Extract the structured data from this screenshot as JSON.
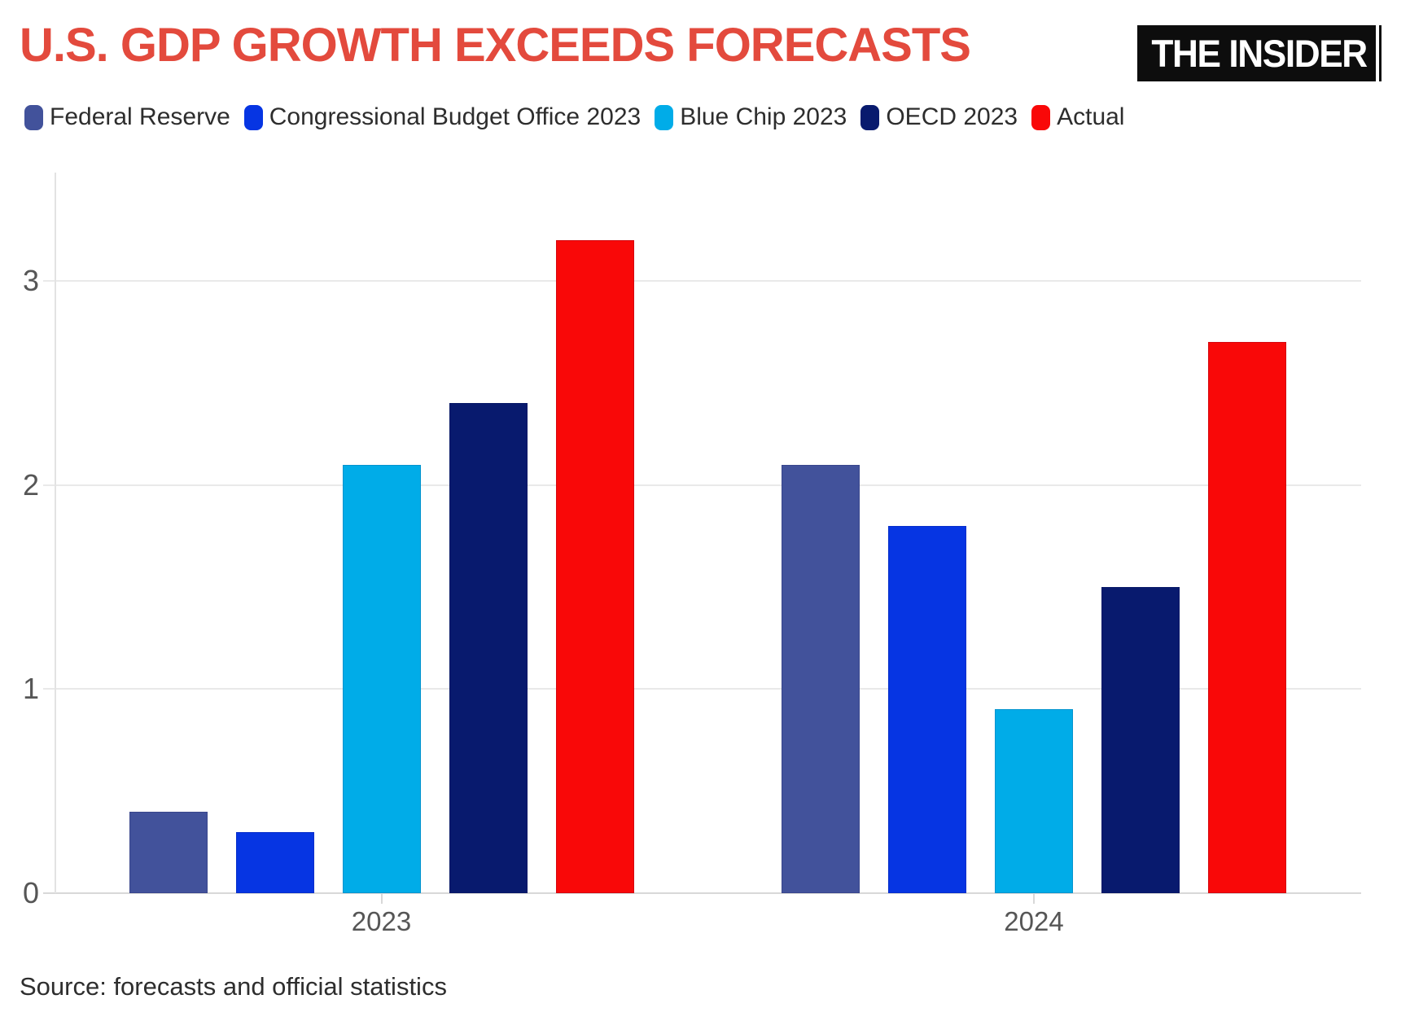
{
  "meta": {
    "background": "#ffffff"
  },
  "header": {
    "title": "U.S. GDP GROWTH EXCEEDS FORECASTS",
    "title_color": "#e34a3d",
    "logo": {
      "text": "THE INSIDER",
      "bg_color": "#0d0d0d",
      "text_color": "#ffffff"
    }
  },
  "chart_data": {
    "type": "bar",
    "title": "U.S. GDP GROWTH EXCEEDS FORECASTS",
    "categories": [
      "2023",
      "2024"
    ],
    "series": [
      {
        "name": "Federal Reserve",
        "color": "#42529b",
        "values": [
          0.4,
          2.1
        ]
      },
      {
        "name": "Congressional Budget Office 2023",
        "color": "#0635e3",
        "values": [
          0.3,
          1.8
        ]
      },
      {
        "name": "Blue Chip 2023",
        "color": "#00ace8",
        "values": [
          2.1,
          0.9
        ]
      },
      {
        "name": "OECD 2023",
        "color": "#081a6e",
        "values": [
          2.4,
          1.5
        ]
      },
      {
        "name": "Actual",
        "color": "#f90808",
        "values": [
          3.2,
          2.7
        ]
      }
    ],
    "xlabel": "",
    "ylabel": "",
    "ylim": [
      0,
      3.5
    ],
    "yticks": [
      0,
      1,
      2,
      3
    ],
    "grid": true,
    "legend_position": "top",
    "axis_text_color": "#565656"
  },
  "footer": {
    "source": "Source: forecasts and official statistics"
  }
}
